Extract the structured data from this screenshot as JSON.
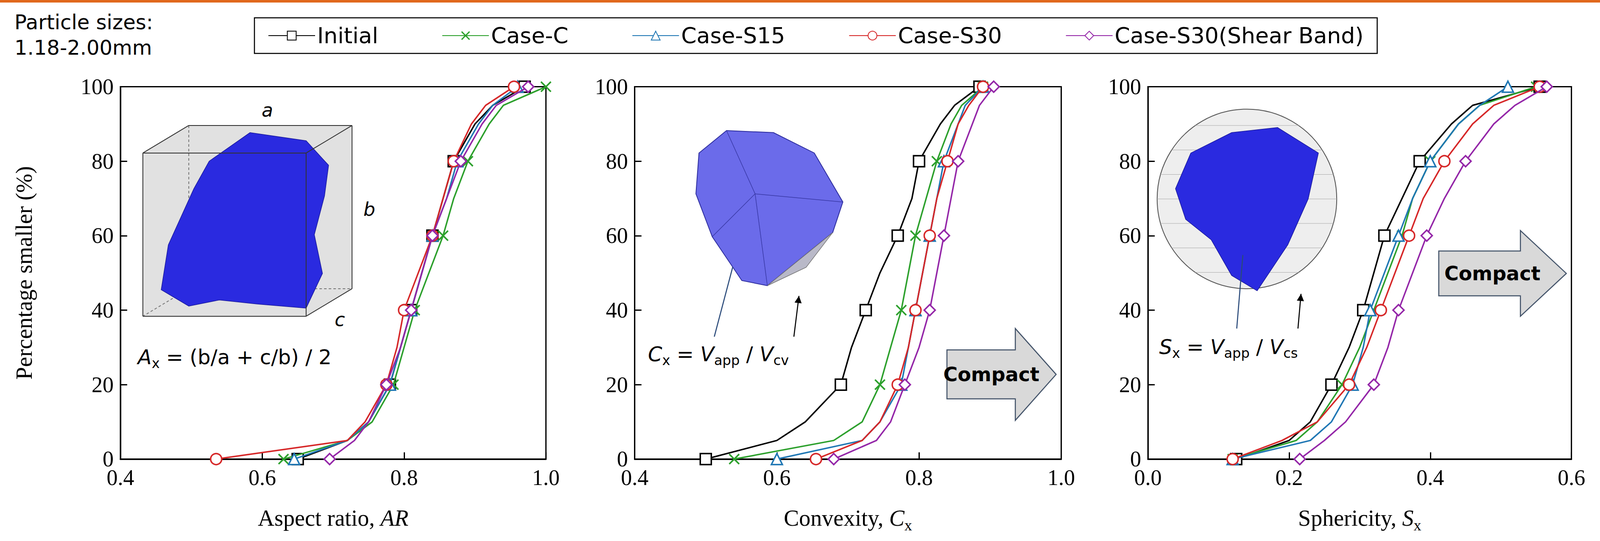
{
  "annotation": [
    "Particle sizes:",
    "1.18-2.00mm"
  ],
  "chart_data": [
    {
      "type": "line",
      "x_label": [
        {
          "text": "Aspect ratio, ",
          "style": "normal"
        },
        {
          "text": "AR",
          "style": "italic"
        }
      ],
      "y_label": "Percentage smaller (%)",
      "xlim": [
        0.4,
        1
      ],
      "xticks": [
        0.4,
        0.6,
        0.8,
        {
          "value": 1,
          "label": "1.0"
        }
      ],
      "ylim": [
        0,
        100
      ],
      "yticks": [
        0,
        20,
        40,
        60,
        80,
        100
      ],
      "grid": false,
      "legend": "top",
      "formula": [
        {
          "text": "A",
          "style": "italic"
        },
        {
          "text": "x",
          "style": "sub"
        },
        {
          "text": " = (b/a + c/b) / 2",
          "style": "normal"
        }
      ],
      "inset_labels": [
        "a",
        "b",
        "c"
      ],
      "series": [
        {
          "name": "Initial",
          "color": "#000000",
          "marker": "square",
          "x": [
            0.65,
            0.72,
            0.75,
            0.78,
            0.795,
            0.81,
            0.825,
            0.84,
            0.855,
            0.87,
            0.9,
            0.925,
            0.97
          ],
          "values": [
            0,
            5,
            10,
            20,
            30,
            40,
            50,
            60,
            70,
            80,
            90,
            95,
            100
          ]
        },
        {
          "name": "Case-C",
          "color": "#2ca02c",
          "marker": "x",
          "x": [
            0.63,
            0.72,
            0.755,
            0.785,
            0.8,
            0.815,
            0.835,
            0.855,
            0.87,
            0.89,
            0.92,
            0.94,
            1.0
          ],
          "values": [
            0,
            5,
            10,
            20,
            30,
            40,
            50,
            60,
            70,
            80,
            90,
            95,
            100
          ]
        },
        {
          "name": "Case-S15",
          "color": "#1f77b4",
          "marker": "triangle",
          "x": [
            0.645,
            0.72,
            0.75,
            0.78,
            0.795,
            0.81,
            0.825,
            0.84,
            0.86,
            0.875,
            0.905,
            0.925,
            0.96
          ],
          "values": [
            0,
            5,
            10,
            20,
            30,
            40,
            50,
            60,
            70,
            80,
            90,
            95,
            100
          ]
        },
        {
          "name": "Case-S30",
          "color": "#d62728",
          "marker": "circle",
          "x": [
            0.535,
            0.72,
            0.745,
            0.775,
            0.79,
            0.8,
            0.82,
            0.84,
            0.855,
            0.87,
            0.895,
            0.915,
            0.955
          ],
          "values": [
            0,
            5,
            10,
            20,
            30,
            40,
            50,
            60,
            70,
            80,
            90,
            95,
            100
          ]
        },
        {
          "name": "Case-S30(Shear Band)",
          "color": "#9426a8",
          "marker": "diamond",
          "x": [
            0.695,
            0.73,
            0.75,
            0.775,
            0.795,
            0.81,
            0.825,
            0.84,
            0.86,
            0.88,
            0.91,
            0.93,
            0.975
          ],
          "values": [
            0,
            5,
            10,
            20,
            30,
            40,
            50,
            60,
            70,
            80,
            90,
            95,
            100
          ]
        }
      ]
    },
    {
      "type": "line",
      "x_label": [
        {
          "text": "Convexity, ",
          "style": "normal"
        },
        {
          "text": "C",
          "style": "italic"
        },
        {
          "text": "x",
          "style": "sub"
        }
      ],
      "xlim": [
        0.4,
        1
      ],
      "xticks": [
        0.4,
        0.6,
        0.8,
        {
          "value": 1,
          "label": "1.0"
        }
      ],
      "ylim": [
        0,
        100
      ],
      "yticks": [
        0,
        20,
        40,
        60,
        80,
        100
      ],
      "grid": false,
      "legend": "top",
      "formula": [
        {
          "text": "C",
          "style": "italic"
        },
        {
          "text": "x",
          "style": "sub"
        },
        {
          "text": " = ",
          "style": "normal"
        },
        {
          "text": "V",
          "style": "italic"
        },
        {
          "text": "app",
          "style": "sub"
        },
        {
          "text": " / ",
          "style": "normal"
        },
        {
          "text": "V",
          "style": "italic"
        },
        {
          "text": "cv",
          "style": "sub"
        }
      ],
      "arrow_label": "Compact",
      "series": [
        {
          "name": "Initial",
          "color": "#000000",
          "marker": "square",
          "x": [
            0.5,
            0.6,
            0.64,
            0.69,
            0.705,
            0.725,
            0.745,
            0.77,
            0.79,
            0.8,
            0.83,
            0.85,
            0.885
          ],
          "values": [
            0,
            5,
            10,
            20,
            30,
            40,
            50,
            60,
            70,
            80,
            90,
            95,
            100
          ]
        },
        {
          "name": "Case-C",
          "color": "#2ca02c",
          "marker": "x",
          "x": [
            0.54,
            0.68,
            0.72,
            0.745,
            0.76,
            0.775,
            0.785,
            0.795,
            0.81,
            0.825,
            0.845,
            0.86,
            0.89
          ],
          "values": [
            0,
            5,
            10,
            20,
            30,
            40,
            50,
            60,
            70,
            80,
            90,
            95,
            100
          ]
        },
        {
          "name": "Case-S15",
          "color": "#1f77b4",
          "marker": "triangle",
          "x": [
            0.6,
            0.72,
            0.745,
            0.775,
            0.785,
            0.795,
            0.805,
            0.815,
            0.825,
            0.835,
            0.855,
            0.865,
            0.89
          ],
          "values": [
            0,
            5,
            10,
            20,
            30,
            40,
            50,
            60,
            70,
            80,
            90,
            95,
            100
          ]
        },
        {
          "name": "Case-S30",
          "color": "#d62728",
          "marker": "circle",
          "x": [
            0.655,
            0.72,
            0.745,
            0.77,
            0.785,
            0.795,
            0.805,
            0.815,
            0.825,
            0.84,
            0.855,
            0.87,
            0.89
          ],
          "values": [
            0,
            5,
            10,
            20,
            30,
            40,
            50,
            60,
            70,
            80,
            90,
            95,
            100
          ]
        },
        {
          "name": "Case-S30(Shear Band)",
          "color": "#9426a8",
          "marker": "diamond",
          "x": [
            0.68,
            0.74,
            0.76,
            0.78,
            0.8,
            0.815,
            0.825,
            0.835,
            0.845,
            0.855,
            0.875,
            0.885,
            0.905
          ],
          "values": [
            0,
            5,
            10,
            20,
            30,
            40,
            50,
            60,
            70,
            80,
            90,
            95,
            100
          ]
        }
      ]
    },
    {
      "type": "line",
      "x_label": [
        {
          "text": "Sphericity, ",
          "style": "normal"
        },
        {
          "text": "S",
          "style": "italic"
        },
        {
          "text": "x",
          "style": "sub"
        }
      ],
      "xlim": [
        0,
        0.6
      ],
      "xticks": [
        {
          "value": 0,
          "label": "0.0"
        },
        0.2,
        0.4,
        0.6
      ],
      "ylim": [
        0,
        100
      ],
      "yticks": [
        0,
        20,
        40,
        60,
        80,
        100
      ],
      "grid": false,
      "legend": "top",
      "formula": [
        {
          "text": "S",
          "style": "italic"
        },
        {
          "text": "x",
          "style": "sub"
        },
        {
          "text": " = ",
          "style": "normal"
        },
        {
          "text": "V",
          "style": "italic"
        },
        {
          "text": "app",
          "style": "sub"
        },
        {
          "text": " / ",
          "style": "normal"
        },
        {
          "text": "V",
          "style": "italic"
        },
        {
          "text": "cs",
          "style": "sub"
        }
      ],
      "arrow_label": "Compact",
      "series": [
        {
          "name": "Initial",
          "color": "#000000",
          "marker": "square",
          "x": [
            0.125,
            0.2,
            0.23,
            0.26,
            0.285,
            0.305,
            0.32,
            0.335,
            0.36,
            0.385,
            0.43,
            0.46,
            0.555
          ],
          "values": [
            0,
            5,
            10,
            20,
            30,
            40,
            50,
            60,
            70,
            80,
            90,
            95,
            100
          ]
        },
        {
          "name": "Case-C",
          "color": "#2ca02c",
          "marker": "x",
          "x": [
            0.12,
            0.21,
            0.24,
            0.275,
            0.3,
            0.32,
            0.34,
            0.36,
            0.375,
            0.4,
            0.44,
            0.47,
            0.55
          ],
          "values": [
            0,
            5,
            10,
            20,
            30,
            40,
            50,
            60,
            70,
            80,
            90,
            95,
            100
          ]
        },
        {
          "name": "Case-S15",
          "color": "#1f77b4",
          "marker": "triangle",
          "x": [
            0.12,
            0.23,
            0.26,
            0.29,
            0.305,
            0.315,
            0.335,
            0.355,
            0.375,
            0.4,
            0.44,
            0.47,
            0.51
          ],
          "values": [
            0,
            5,
            10,
            20,
            30,
            40,
            50,
            60,
            70,
            80,
            90,
            95,
            100
          ]
        },
        {
          "name": "Case-S30",
          "color": "#d62728",
          "marker": "circle",
          "x": [
            0.12,
            0.19,
            0.24,
            0.285,
            0.31,
            0.33,
            0.35,
            0.37,
            0.39,
            0.42,
            0.46,
            0.49,
            0.555
          ],
          "values": [
            0,
            5,
            10,
            20,
            30,
            40,
            50,
            60,
            70,
            80,
            90,
            95,
            100
          ]
        },
        {
          "name": "Case-S30(Shear Band)",
          "color": "#9426a8",
          "marker": "diamond",
          "x": [
            0.215,
            0.25,
            0.28,
            0.32,
            0.34,
            0.355,
            0.375,
            0.395,
            0.42,
            0.45,
            0.49,
            0.52,
            0.565
          ],
          "values": [
            0,
            5,
            10,
            20,
            30,
            40,
            50,
            60,
            70,
            80,
            90,
            95,
            100
          ]
        }
      ]
    }
  ]
}
